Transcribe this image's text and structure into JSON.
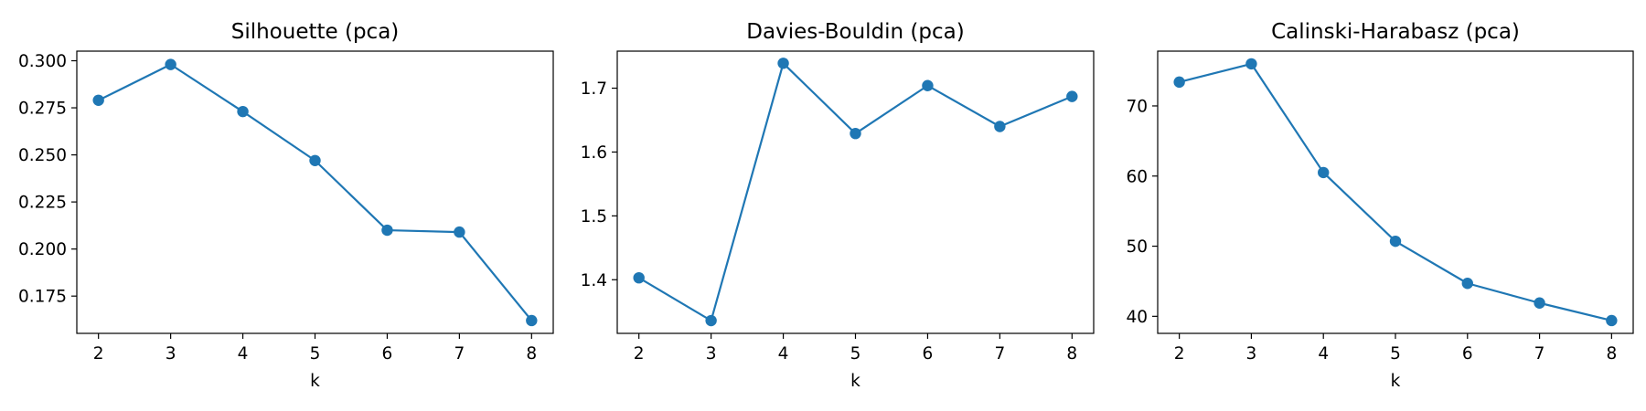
{
  "figure": {
    "background": "#ffffff",
    "series_color": "#1f77b4"
  },
  "chart_data": [
    {
      "type": "line",
      "title": "Silhouette (pca)",
      "xlabel": "k",
      "ylabel": "",
      "x": [
        2,
        3,
        4,
        5,
        6,
        7,
        8
      ],
      "series": [
        {
          "values": [
            0.279,
            0.298,
            0.273,
            0.247,
            0.21,
            0.209,
            0.162
          ]
        }
      ],
      "xticks": [
        2,
        3,
        4,
        5,
        6,
        7,
        8
      ],
      "yticks": [
        0.175,
        0.2,
        0.225,
        0.25,
        0.275,
        0.3
      ],
      "ytick_labels": [
        "0.175",
        "0.200",
        "0.225",
        "0.250",
        "0.275",
        "0.300"
      ],
      "xlim": [
        1.7,
        8.3
      ],
      "ylim": [
        0.1552,
        0.3051
      ],
      "grid": false,
      "marker": "circle"
    },
    {
      "type": "line",
      "title": "Davies-Bouldin (pca)",
      "xlabel": "k",
      "ylabel": "",
      "x": [
        2,
        3,
        4,
        5,
        6,
        7,
        8
      ],
      "series": [
        {
          "values": [
            1.403,
            1.336,
            1.739,
            1.629,
            1.704,
            1.64,
            1.687
          ]
        }
      ],
      "xticks": [
        2,
        3,
        4,
        5,
        6,
        7,
        8
      ],
      "yticks": [
        1.4,
        1.5,
        1.6,
        1.7
      ],
      "ytick_labels": [
        "1.4",
        "1.5",
        "1.6",
        "1.7"
      ],
      "xlim": [
        1.7,
        8.3
      ],
      "ylim": [
        1.316,
        1.758
      ],
      "grid": false,
      "marker": "circle"
    },
    {
      "type": "line",
      "title": "Calinski-Harabasz (pca)",
      "xlabel": "k",
      "ylabel": "",
      "x": [
        2,
        3,
        4,
        5,
        6,
        7,
        8
      ],
      "series": [
        {
          "values": [
            73.4,
            76.0,
            60.5,
            50.7,
            44.7,
            41.9,
            39.4
          ]
        }
      ],
      "xticks": [
        2,
        3,
        4,
        5,
        6,
        7,
        8
      ],
      "yticks": [
        40,
        50,
        60,
        70
      ],
      "ytick_labels": [
        "40",
        "50",
        "60",
        "70"
      ],
      "xlim": [
        1.7,
        8.3
      ],
      "ylim": [
        37.57,
        77.81
      ],
      "grid": false,
      "marker": "circle"
    }
  ]
}
